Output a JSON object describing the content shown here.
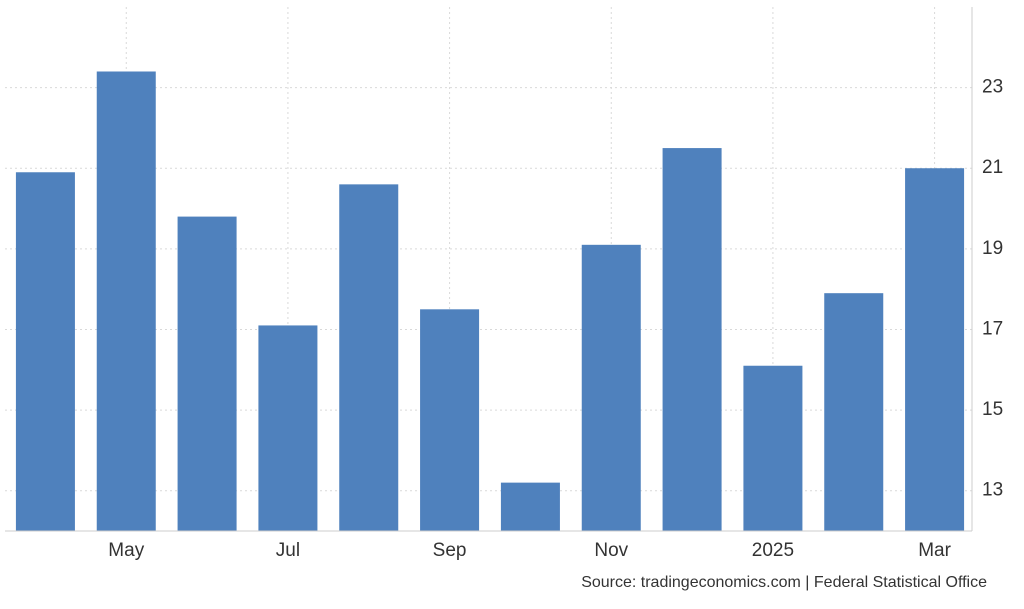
{
  "chart_data": {
    "type": "bar",
    "categories": [
      null,
      "May",
      null,
      "Jul",
      null,
      "Sep",
      null,
      "Nov",
      null,
      "2025",
      null,
      "Mar"
    ],
    "values": [
      20.9,
      23.4,
      19.8,
      17.1,
      20.6,
      17.5,
      13.2,
      19.1,
      21.5,
      16.1,
      17.9,
      21.0
    ],
    "color": "#4f81bd",
    "ylim": [
      12,
      25
    ],
    "yticks": [
      13,
      15,
      17,
      19,
      21,
      23
    ],
    "grid": true,
    "source": "Source: tradingeconomics.com | Federal Statistical Office"
  }
}
